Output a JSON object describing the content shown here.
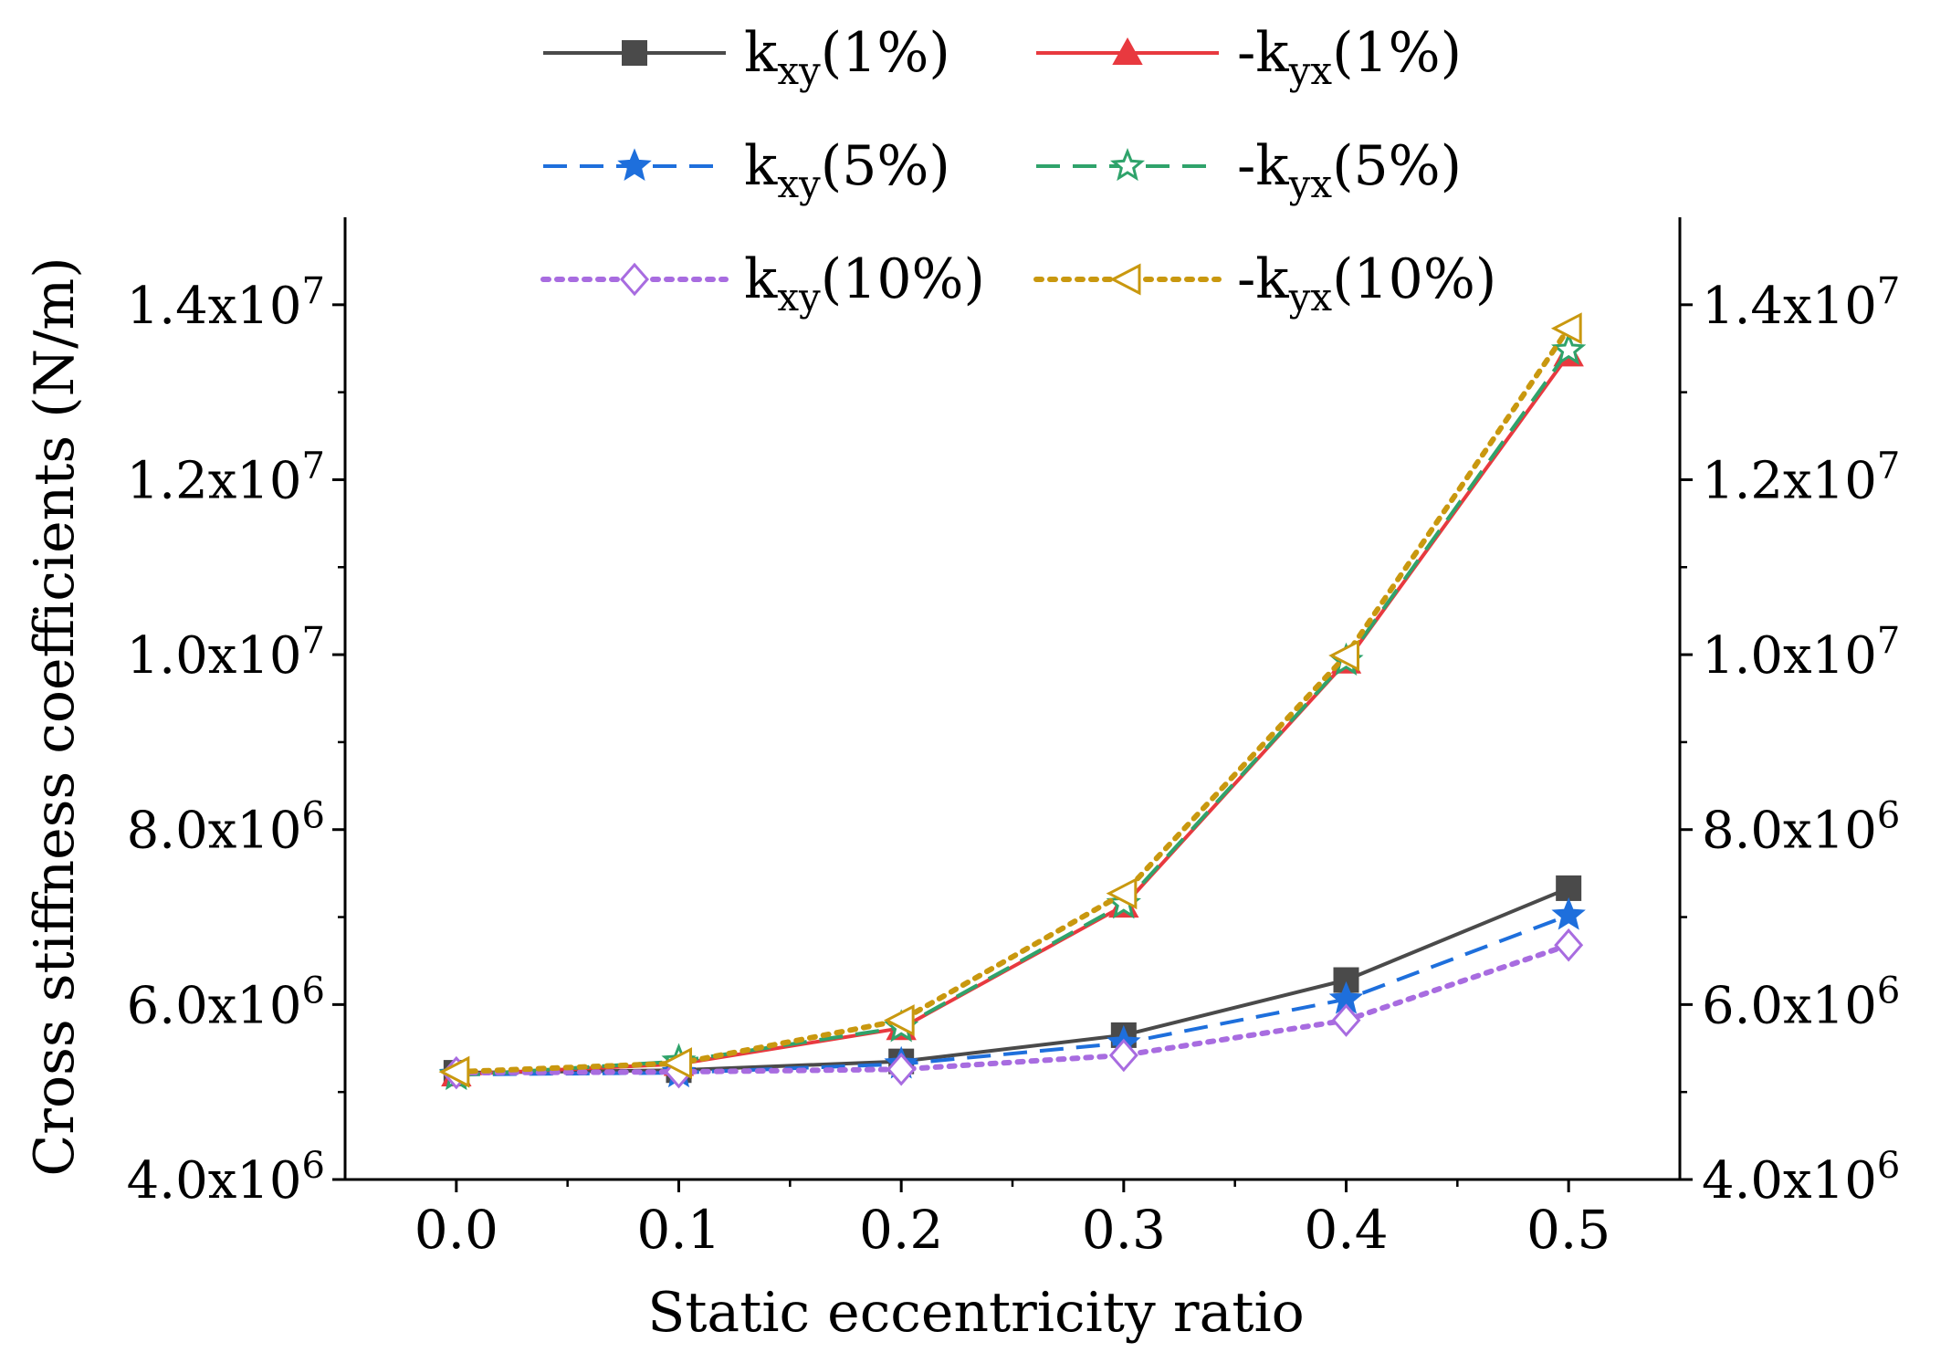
{
  "chart_data": {
    "type": "line",
    "title": "",
    "xlabel": "Static eccentricity ratio",
    "ylabel": "Cross stiffness coefficients (N/m)",
    "xlim": [
      -0.05,
      0.55
    ],
    "ylim": [
      4000000,
      15000000
    ],
    "x": [
      0.0,
      0.1,
      0.2,
      0.3,
      0.4,
      0.5
    ],
    "x_tick_labels": [
      "0.0",
      "0.1",
      "0.2",
      "0.3",
      "0.4",
      "0.5"
    ],
    "y_ticks": [
      {
        "value": 4000000,
        "mantissa": "4.0x10",
        "exp": "6"
      },
      {
        "value": 6000000,
        "mantissa": "6.0x10",
        "exp": "6"
      },
      {
        "value": 8000000,
        "mantissa": "8.0x10",
        "exp": "6"
      },
      {
        "value": 10000000,
        "mantissa": "1.0x10",
        "exp": "7"
      },
      {
        "value": 12000000,
        "mantissa": "1.2x10",
        "exp": "7"
      },
      {
        "value": 14000000,
        "mantissa": "1.4x10",
        "exp": "7"
      }
    ],
    "grid": false,
    "legend_position": "top",
    "series": [
      {
        "name": "k_xy(1%)",
        "label_pre": "k",
        "label_sub": "xy",
        "label_post": "(1%)",
        "color": "#4a4a4a",
        "dash": "solid",
        "marker": "square-filled",
        "values": [
          5220000,
          5250000,
          5350000,
          5650000,
          6280000,
          7330000
        ]
      },
      {
        "name": "-k_yx(1%)",
        "label_pre": "-k",
        "label_sub": "yx",
        "label_post": "(1%)",
        "color": "#e8393f",
        "dash": "solid",
        "marker": "triangle-up-filled",
        "values": [
          5200000,
          5320000,
          5730000,
          7130000,
          9920000,
          13430000
        ]
      },
      {
        "name": "k_xy(5%)",
        "label_pre": "k",
        "label_sub": "xy",
        "label_post": "(5%)",
        "color": "#1e6fdc",
        "dash": "dash",
        "marker": "star-filled",
        "values": [
          5200000,
          5220000,
          5320000,
          5560000,
          6060000,
          7020000
        ]
      },
      {
        "name": "-k_yx(5%)",
        "label_pre": "-k",
        "label_sub": "yx",
        "label_post": "(5%)",
        "color": "#2fa36b",
        "dash": "dash",
        "marker": "star-open",
        "values": [
          5190000,
          5350000,
          5740000,
          7150000,
          9930000,
          13480000
        ]
      },
      {
        "name": "k_xy(10%)",
        "label_pre": "k",
        "label_sub": "xy",
        "label_post": "(10%)",
        "color": "#a86ce0",
        "dash": "dot",
        "marker": "diamond-open",
        "values": [
          5220000,
          5230000,
          5260000,
          5420000,
          5820000,
          6680000
        ]
      },
      {
        "name": "-k_yx(10%)",
        "label_pre": "-k",
        "label_sub": "yx",
        "label_post": "(10%)",
        "color": "#c9980f",
        "dash": "dot",
        "marker": "triangle-left-open",
        "values": [
          5230000,
          5330000,
          5820000,
          7270000,
          9990000,
          13730000
        ]
      }
    ]
  }
}
